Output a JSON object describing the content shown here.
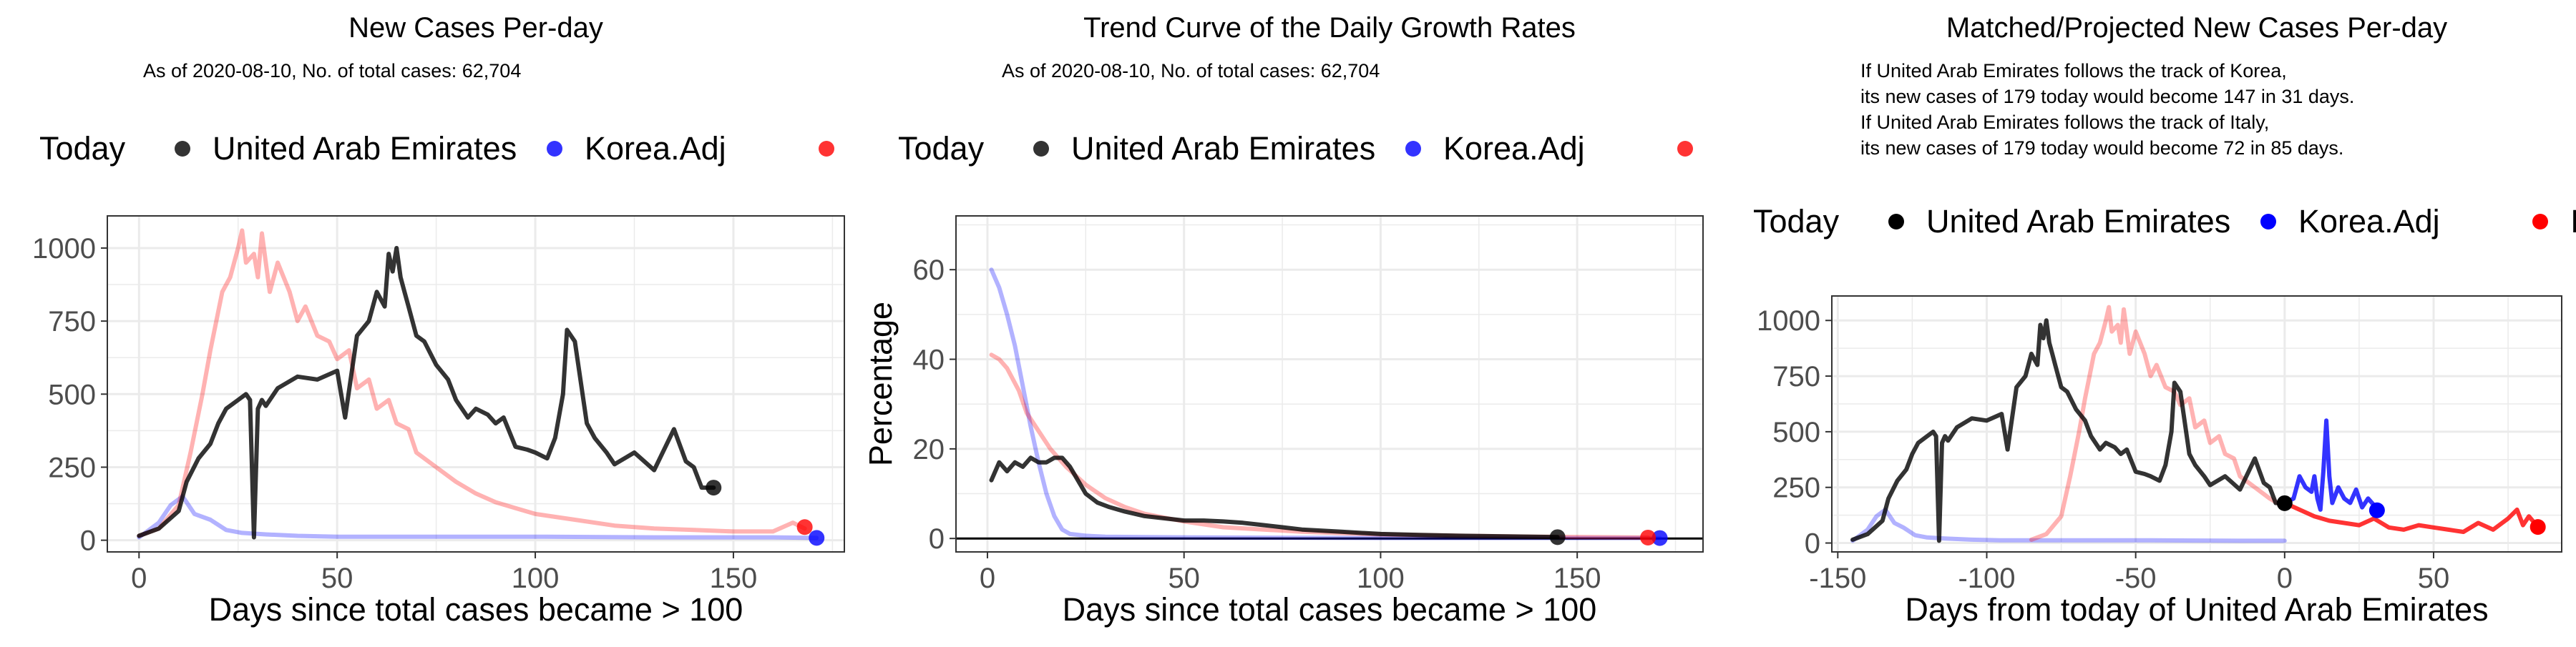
{
  "colors": {
    "uae": "#000000",
    "korea": "#0000ff",
    "italy": "#ff0000",
    "grid": "#ebebeb",
    "panel_border": "#333333"
  },
  "chart_data": [
    {
      "type": "line",
      "title": "New Cases Per-day",
      "subtitle": "As of 2020-08-10, No. of total cases: 62,704",
      "xlabel": "Days since total cases became > 100",
      "ylabel": "",
      "xlim": [
        -8,
        178
      ],
      "ylim": [
        -40,
        1110
      ],
      "xticks": [
        0,
        50,
        100,
        150
      ],
      "yticks": [
        0,
        250,
        500,
        750,
        1000
      ],
      "grid": true,
      "legend": {
        "position": "top",
        "title": "Today",
        "entries": [
          "United Arab Emirates",
          "Korea.Adj",
          "Italy"
        ]
      },
      "series": [
        {
          "name": "Korea.Adj",
          "color": "#0000ff",
          "opacity": 0.3,
          "x": [
            0,
            5,
            8,
            11,
            14,
            18,
            22,
            26,
            32,
            40,
            50,
            70,
            100,
            130,
            160,
            171
          ],
          "y": [
            10,
            60,
            120,
            150,
            90,
            70,
            35,
            25,
            20,
            15,
            12,
            12,
            12,
            10,
            10,
            8
          ],
          "today": [
            171,
            8
          ]
        },
        {
          "name": "Italy",
          "color": "#ff0000",
          "opacity": 0.3,
          "x": [
            0,
            5,
            10,
            13,
            16,
            18,
            21,
            23,
            25,
            26,
            27,
            29,
            30,
            31,
            33,
            35,
            38,
            40,
            42,
            45,
            48,
            50,
            53,
            55,
            58,
            60,
            63,
            65,
            68,
            70,
            75,
            80,
            85,
            90,
            95,
            100,
            110,
            120,
            130,
            140,
            150,
            160,
            165,
            168
          ],
          "y": [
            15,
            40,
            120,
            300,
            500,
            650,
            850,
            900,
            1000,
            1060,
            950,
            980,
            900,
            1050,
            850,
            950,
            850,
            750,
            800,
            700,
            680,
            620,
            650,
            520,
            550,
            450,
            480,
            400,
            380,
            300,
            250,
            200,
            160,
            130,
            110,
            90,
            70,
            50,
            40,
            35,
            30,
            30,
            60,
            40
          ],
          "today": [
            168,
            45
          ]
        },
        {
          "name": "United Arab Emirates",
          "color": "#000000",
          "opacity": 0.8,
          "x": [
            0,
            5,
            10,
            12,
            15,
            18,
            20,
            22,
            25,
            27,
            28,
            29,
            30,
            31,
            32,
            35,
            40,
            45,
            50,
            52,
            55,
            58,
            60,
            62,
            63,
            64,
            65,
            66,
            67,
            68,
            70,
            72,
            75,
            78,
            80,
            83,
            85,
            88,
            90,
            92,
            95,
            98,
            100,
            103,
            105,
            107,
            108,
            110,
            113,
            115,
            118,
            120,
            125,
            130,
            135,
            138,
            140,
            142,
            145
          ],
          "y": [
            15,
            40,
            100,
            200,
            280,
            330,
            400,
            450,
            480,
            500,
            480,
            10,
            450,
            480,
            460,
            520,
            560,
            550,
            580,
            420,
            700,
            750,
            850,
            800,
            980,
            920,
            1000,
            900,
            850,
            800,
            700,
            680,
            600,
            550,
            480,
            420,
            450,
            430,
            400,
            420,
            320,
            310,
            300,
            280,
            350,
            500,
            720,
            680,
            400,
            350,
            300,
            260,
            300,
            240,
            380,
            270,
            250,
            180,
            180
          ],
          "today": [
            145,
            180
          ]
        }
      ]
    },
    {
      "type": "line",
      "title": "Trend Curve of the Daily Growth Rates",
      "subtitle": "As of 2020-08-10, No. of total cases: 62,704",
      "xlabel": "Days since total cases became > 100",
      "ylabel": "Percentage",
      "xlim": [
        -8,
        182
      ],
      "ylim": [
        -3,
        72
      ],
      "xticks": [
        0,
        50,
        100,
        150
      ],
      "yticks": [
        0,
        20,
        40,
        60
      ],
      "grid": true,
      "hline": 0,
      "legend": {
        "position": "top",
        "title": "Today",
        "entries": [
          "United Arab Emirates",
          "Korea.Adj",
          "Italy"
        ]
      },
      "series": [
        {
          "name": "Korea.Adj",
          "color": "#0000ff",
          "opacity": 0.3,
          "x": [
            1,
            3,
            5,
            7,
            9,
            11,
            13,
            15,
            17,
            19,
            21,
            25,
            30,
            40,
            60,
            100,
            140,
            171
          ],
          "y": [
            60,
            56,
            50,
            43,
            34,
            25,
            17,
            10,
            5,
            2,
            1,
            0.6,
            0.4,
            0.3,
            0.2,
            0.1,
            0.1,
            0.1
          ],
          "today": [
            171,
            0.1
          ]
        },
        {
          "name": "Italy",
          "color": "#ff0000",
          "opacity": 0.3,
          "x": [
            1,
            3,
            5,
            8,
            10,
            13,
            16,
            20,
            25,
            30,
            35,
            40,
            50,
            60,
            80,
            100,
            120,
            140,
            168
          ],
          "y": [
            41,
            40,
            38,
            33,
            28,
            24,
            20,
            16,
            12,
            9,
            7,
            5.5,
            3.8,
            2.5,
            1.5,
            0.9,
            0.6,
            0.4,
            0.2
          ],
          "today": [
            168,
            0.2
          ]
        },
        {
          "name": "United Arab Emirates",
          "color": "#000000",
          "opacity": 0.8,
          "x": [
            1,
            3,
            5,
            7,
            9,
            11,
            13,
            15,
            17,
            19,
            21,
            23,
            25,
            28,
            31,
            35,
            40,
            45,
            50,
            55,
            60,
            65,
            70,
            75,
            80,
            90,
            100,
            110,
            120,
            130,
            145
          ],
          "y": [
            13,
            17,
            15,
            17,
            16,
            18,
            17,
            17,
            18,
            18,
            16,
            13,
            10,
            8,
            7,
            6,
            5,
            4.5,
            4,
            4,
            3.8,
            3.5,
            3,
            2.5,
            2,
            1.5,
            1,
            0.8,
            0.6,
            0.5,
            0.3
          ],
          "today": [
            145,
            0.3
          ]
        }
      ]
    },
    {
      "type": "line",
      "title": "Matched/Projected New Cases Per-day",
      "annotations": [
        "If United Arab Emirates follows the track of Korea,",
        "its new cases of 179 today would become 147 in 31 days.",
        "If United Arab Emirates follows the track of Italy,",
        "its new cases of 179 today would become 72 in 85 days."
      ],
      "xlabel": "Days from today of United Arab Emirates",
      "ylabel": "",
      "xlim": [
        -152,
        93
      ],
      "ylim": [
        -40,
        1110
      ],
      "xticks": [
        -150,
        -100,
        -50,
        0,
        50
      ],
      "yticks": [
        0,
        250,
        500,
        750,
        1000
      ],
      "grid": true,
      "legend": {
        "position": "top",
        "title": "Today",
        "entries": [
          "United Arab Emirates",
          "Korea.Adj",
          "Italy"
        ]
      },
      "series": [
        {
          "name": "Korea.Adj (matched)",
          "color": "#0000ff",
          "opacity": 0.3,
          "x": [
            -145,
            -140,
            -137,
            -134,
            -131,
            -128,
            -124,
            -120,
            -114,
            -105,
            -95,
            -75,
            -45,
            -15,
            0
          ],
          "y": [
            10,
            60,
            120,
            150,
            90,
            70,
            35,
            25,
            20,
            15,
            12,
            12,
            12,
            10,
            10
          ]
        },
        {
          "name": "Korea.Adj (projected)",
          "color": "#0000ff",
          "opacity": 0.8,
          "x": [
            0,
            3,
            5,
            7,
            9,
            10,
            11,
            12,
            13,
            14,
            15,
            16,
            18,
            20,
            22,
            24,
            26,
            28,
            30,
            31
          ],
          "y": [
            180,
            200,
            300,
            250,
            230,
            300,
            200,
            150,
            320,
            550,
            300,
            180,
            250,
            200,
            180,
            240,
            160,
            200,
            170,
            147
          ]
        },
        {
          "name": "Italy (matched)",
          "color": "#ff0000",
          "opacity": 0.3,
          "x": [
            -85,
            -80,
            -75,
            -72,
            -69,
            -67,
            -64,
            -62,
            -60,
            -59,
            -58,
            -56,
            -55,
            -54,
            -52,
            -50,
            -47,
            -45,
            -43,
            -40,
            -37,
            -35,
            -32,
            -30,
            -27,
            -25,
            -22,
            -20,
            -17,
            -15,
            -10,
            -5,
            0
          ],
          "y": [
            15,
            40,
            120,
            300,
            500,
            650,
            850,
            900,
            1000,
            1060,
            950,
            980,
            900,
            1050,
            850,
            950,
            850,
            750,
            800,
            700,
            680,
            620,
            650,
            520,
            550,
            450,
            480,
            400,
            380,
            300,
            250,
            200,
            160
          ]
        },
        {
          "name": "Italy (projected)",
          "color": "#ff0000",
          "opacity": 0.8,
          "x": [
            0,
            5,
            10,
            15,
            20,
            25,
            30,
            35,
            40,
            45,
            50,
            55,
            60,
            65,
            70,
            75,
            78,
            80,
            82,
            85
          ],
          "y": [
            180,
            150,
            120,
            100,
            90,
            80,
            110,
            70,
            60,
            80,
            70,
            60,
            50,
            90,
            60,
            110,
            150,
            80,
            120,
            72
          ]
        },
        {
          "name": "United Arab Emirates",
          "color": "#000000",
          "opacity": 0.8,
          "x": [
            -145,
            -140,
            -135,
            -133,
            -130,
            -127,
            -125,
            -123,
            -120,
            -118,
            -117,
            -116,
            -115,
            -114,
            -113,
            -110,
            -105,
            -100,
            -95,
            -93,
            -90,
            -87,
            -85,
            -83,
            -82,
            -81,
            -80,
            -79,
            -78,
            -77,
            -75,
            -73,
            -70,
            -67,
            -65,
            -62,
            -60,
            -57,
            -55,
            -53,
            -50,
            -47,
            -45,
            -42,
            -40,
            -38,
            -37,
            -35,
            -32,
            -30,
            -27,
            -25,
            -20,
            -15,
            -10,
            -7,
            -5,
            -3,
            0
          ],
          "y": [
            15,
            40,
            100,
            200,
            280,
            330,
            400,
            450,
            480,
            500,
            480,
            10,
            450,
            480,
            460,
            520,
            560,
            550,
            580,
            420,
            700,
            750,
            850,
            800,
            980,
            920,
            1000,
            900,
            850,
            800,
            700,
            680,
            600,
            550,
            480,
            420,
            450,
            430,
            400,
            420,
            320,
            310,
            300,
            280,
            350,
            500,
            720,
            680,
            400,
            350,
            300,
            260,
            300,
            240,
            380,
            270,
            250,
            180,
            180
          ],
          "today": [
            0,
            179
          ]
        }
      ],
      "today_points": [
        {
          "name": "United Arab Emirates",
          "x": 0,
          "y": 179,
          "color": "#000000"
        },
        {
          "name": "Korea.Adj",
          "x": 31,
          "y": 147,
          "color": "#0000ff"
        },
        {
          "name": "Italy",
          "x": 85,
          "y": 72,
          "color": "#ff0000"
        }
      ]
    }
  ]
}
